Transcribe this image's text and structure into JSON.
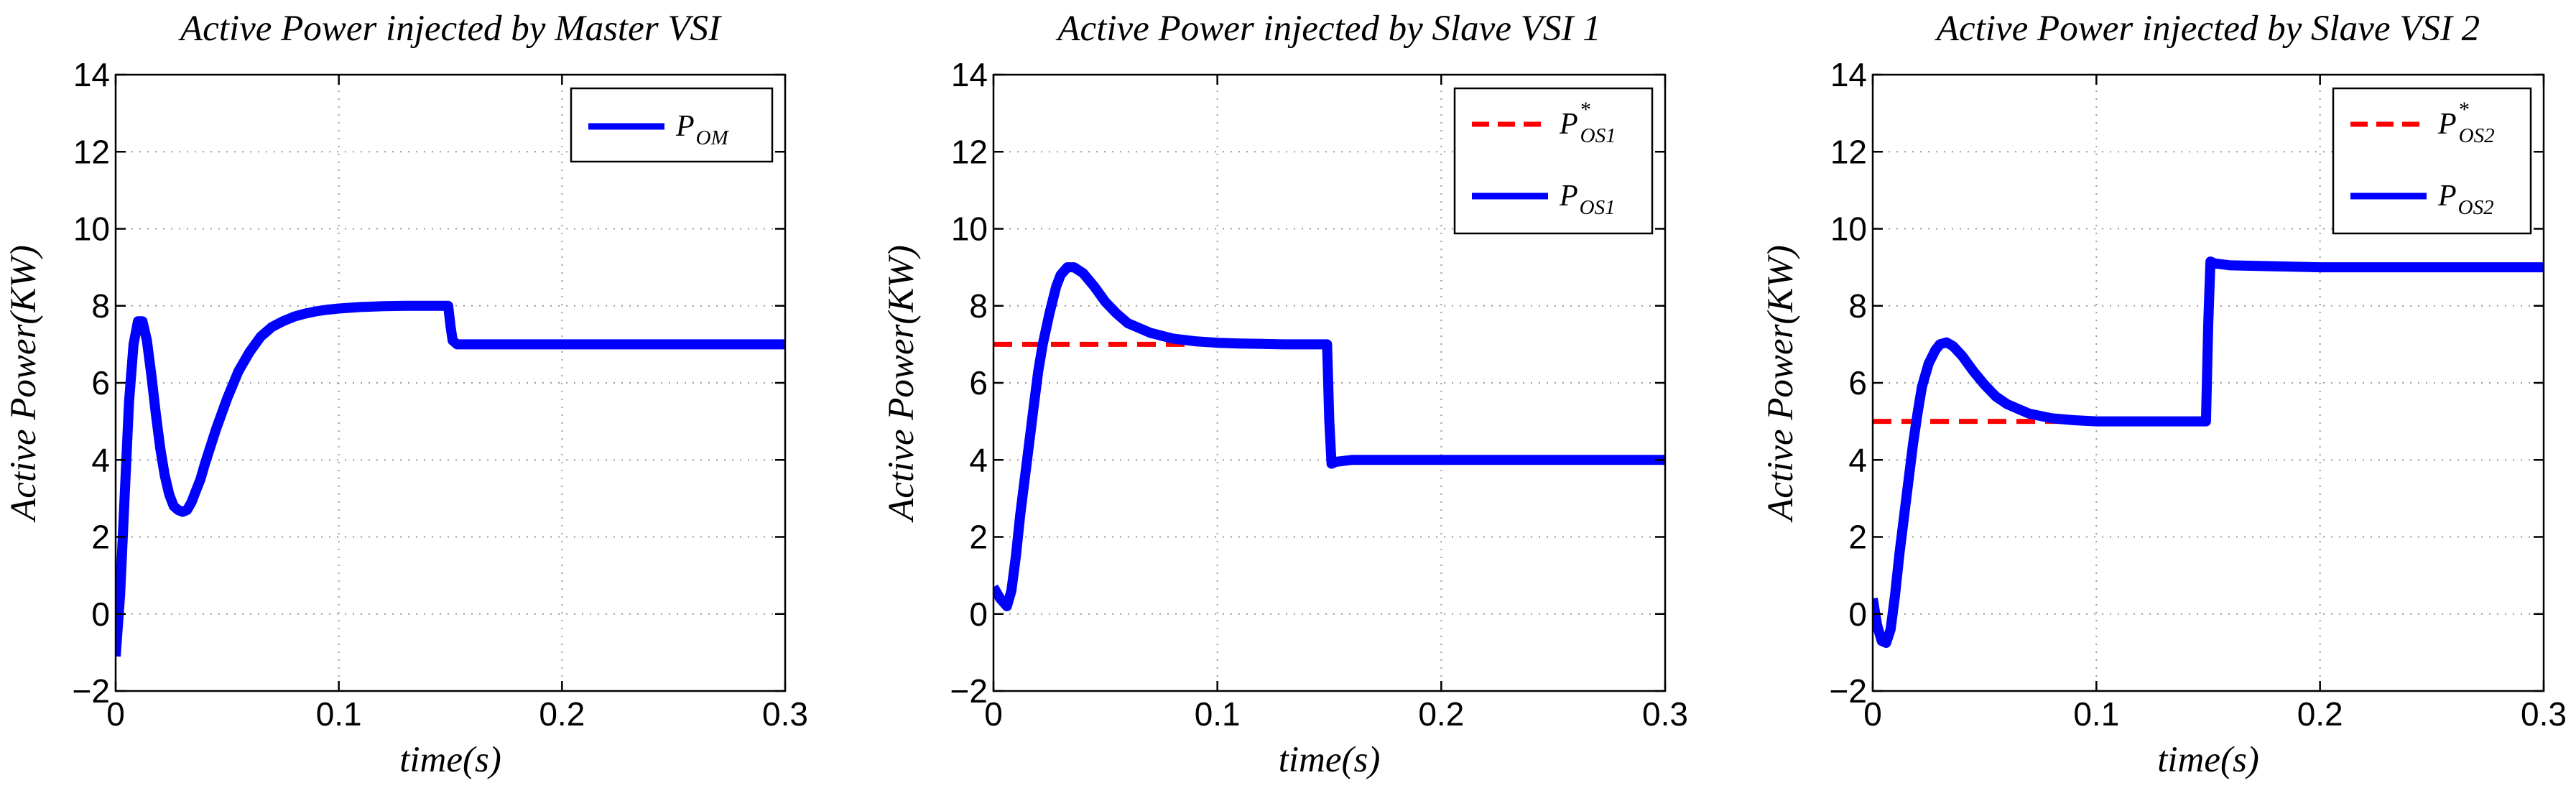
{
  "chart_data": [
    {
      "type": "line",
      "title": "Active Power injected by Master VSI",
      "xlabel": "time(s)",
      "ylabel": "Active Power(KW)",
      "xlim": [
        0,
        0.3
      ],
      "ylim": [
        -2,
        14
      ],
      "xticks": [
        0,
        0.1,
        0.2,
        0.3
      ],
      "xtick_labels": [
        "0",
        "0.1",
        "0.2",
        "0.3"
      ],
      "yticks": [
        -2,
        0,
        2,
        4,
        6,
        8,
        10,
        12,
        14
      ],
      "ytick_labels": [
        "−2",
        "0",
        "2",
        "4",
        "6",
        "8",
        "10",
        "12",
        "14"
      ],
      "grid": true,
      "legend_position": "top-right",
      "series": [
        {
          "name": "P_OM",
          "label_main": "P",
          "label_sub": "OM",
          "label_sup": "",
          "color": "#0000ff",
          "style": "solid",
          "x": [
            0,
            0.002,
            0.004,
            0.006,
            0.008,
            0.01,
            0.012,
            0.014,
            0.016,
            0.018,
            0.02,
            0.022,
            0.024,
            0.026,
            0.028,
            0.03,
            0.032,
            0.034,
            0.036,
            0.038,
            0.04,
            0.045,
            0.05,
            0.055,
            0.06,
            0.065,
            0.07,
            0.075,
            0.08,
            0.085,
            0.09,
            0.095,
            0.1,
            0.11,
            0.12,
            0.13,
            0.14,
            0.149,
            0.15,
            0.151,
            0.153,
            0.16,
            0.18,
            0.2,
            0.25,
            0.3
          ],
          "y": [
            -1.1,
            0.5,
            3.0,
            5.5,
            7.0,
            7.6,
            7.6,
            7.1,
            6.2,
            5.2,
            4.3,
            3.6,
            3.1,
            2.8,
            2.7,
            2.65,
            2.7,
            2.9,
            3.2,
            3.5,
            3.9,
            4.8,
            5.6,
            6.3,
            6.8,
            7.2,
            7.45,
            7.6,
            7.72,
            7.8,
            7.86,
            7.9,
            7.93,
            7.97,
            7.99,
            8.0,
            8.0,
            8.0,
            7.5,
            7.1,
            7.0,
            7.0,
            7.0,
            7.0,
            7.0,
            7.0
          ]
        }
      ]
    },
    {
      "type": "line",
      "title": "Active Power injected by Slave VSI 1",
      "xlabel": "time(s)",
      "ylabel": "Active Power(KW)",
      "xlim": [
        0,
        0.3
      ],
      "ylim": [
        -2,
        14
      ],
      "xticks": [
        0,
        0.1,
        0.2,
        0.3
      ],
      "xtick_labels": [
        "0",
        "0.1",
        "0.2",
        "0.3"
      ],
      "yticks": [
        -2,
        0,
        2,
        4,
        6,
        8,
        10,
        12,
        14
      ],
      "ytick_labels": [
        "−2",
        "0",
        "2",
        "4",
        "6",
        "8",
        "10",
        "12",
        "14"
      ],
      "grid": true,
      "legend_position": "top-right",
      "series": [
        {
          "name": "P*_OS1",
          "label_main": "P",
          "label_sub": "OS1",
          "label_sup": "*",
          "color": "#ff0000",
          "style": "dashed",
          "x": [
            0,
            0.0857
          ],
          "y": [
            7.0,
            7.0
          ]
        },
        {
          "name": "P_OS1",
          "label_main": "P",
          "label_sub": "OS1",
          "label_sup": "",
          "color": "#0000ff",
          "style": "solid",
          "x": [
            0,
            0.003,
            0.006,
            0.008,
            0.01,
            0.012,
            0.015,
            0.018,
            0.02,
            0.022,
            0.025,
            0.028,
            0.03,
            0.033,
            0.036,
            0.04,
            0.045,
            0.05,
            0.055,
            0.06,
            0.07,
            0.08,
            0.09,
            0.1,
            0.11,
            0.12,
            0.13,
            0.14,
            0.149,
            0.15,
            0.151,
            0.153,
            0.16,
            0.2,
            0.25,
            0.3
          ],
          "y": [
            0.7,
            0.4,
            0.2,
            0.6,
            1.5,
            2.6,
            4.0,
            5.4,
            6.3,
            7.0,
            7.8,
            8.5,
            8.8,
            9.0,
            9.0,
            8.85,
            8.5,
            8.1,
            7.8,
            7.55,
            7.3,
            7.15,
            7.08,
            7.04,
            7.02,
            7.01,
            7.0,
            7.0,
            7.0,
            5.0,
            3.9,
            3.95,
            4.0,
            4.0,
            4.0,
            4.0
          ]
        }
      ]
    },
    {
      "type": "line",
      "title": "Active Power injected by Slave VSI 2",
      "xlabel": "time(s)",
      "ylabel": "Active Power(KW)",
      "xlim": [
        0,
        0.3
      ],
      "ylim": [
        -2,
        14
      ],
      "xticks": [
        0,
        0.1,
        0.2,
        0.3
      ],
      "xtick_labels": [
        "0",
        "0.1",
        "0.2",
        "0.3"
      ],
      "yticks": [
        -2,
        0,
        2,
        4,
        6,
        8,
        10,
        12,
        14
      ],
      "ytick_labels": [
        "−2",
        "0",
        "2",
        "4",
        "6",
        "8",
        "10",
        "12",
        "14"
      ],
      "grid": true,
      "legend_position": "top-right",
      "series": [
        {
          "name": "P*_OS2",
          "label_main": "P",
          "label_sub": "OS2",
          "label_sup": "*",
          "color": "#ff0000",
          "style": "dashed",
          "x": [
            0,
            0.0857
          ],
          "y": [
            5.0,
            5.0
          ]
        },
        {
          "name": "P_OS2",
          "label_main": "P",
          "label_sub": "OS2",
          "label_sup": "",
          "color": "#0000ff",
          "style": "solid",
          "x": [
            0,
            0.002,
            0.004,
            0.006,
            0.008,
            0.01,
            0.012,
            0.015,
            0.018,
            0.02,
            0.022,
            0.025,
            0.028,
            0.03,
            0.033,
            0.036,
            0.04,
            0.045,
            0.05,
            0.055,
            0.06,
            0.07,
            0.08,
            0.09,
            0.1,
            0.11,
            0.12,
            0.13,
            0.14,
            0.149,
            0.15,
            0.151,
            0.153,
            0.16,
            0.2,
            0.25,
            0.3
          ],
          "y": [
            0.4,
            -0.3,
            -0.7,
            -0.75,
            -0.4,
            0.5,
            1.6,
            3.0,
            4.4,
            5.2,
            5.9,
            6.5,
            6.85,
            7.0,
            7.05,
            6.95,
            6.7,
            6.3,
            5.95,
            5.65,
            5.45,
            5.2,
            5.08,
            5.03,
            5.0,
            5.0,
            5.0,
            5.0,
            5.0,
            5.0,
            7.5,
            9.15,
            9.1,
            9.05,
            9.0,
            9.0,
            9.0
          ]
        }
      ]
    }
  ]
}
